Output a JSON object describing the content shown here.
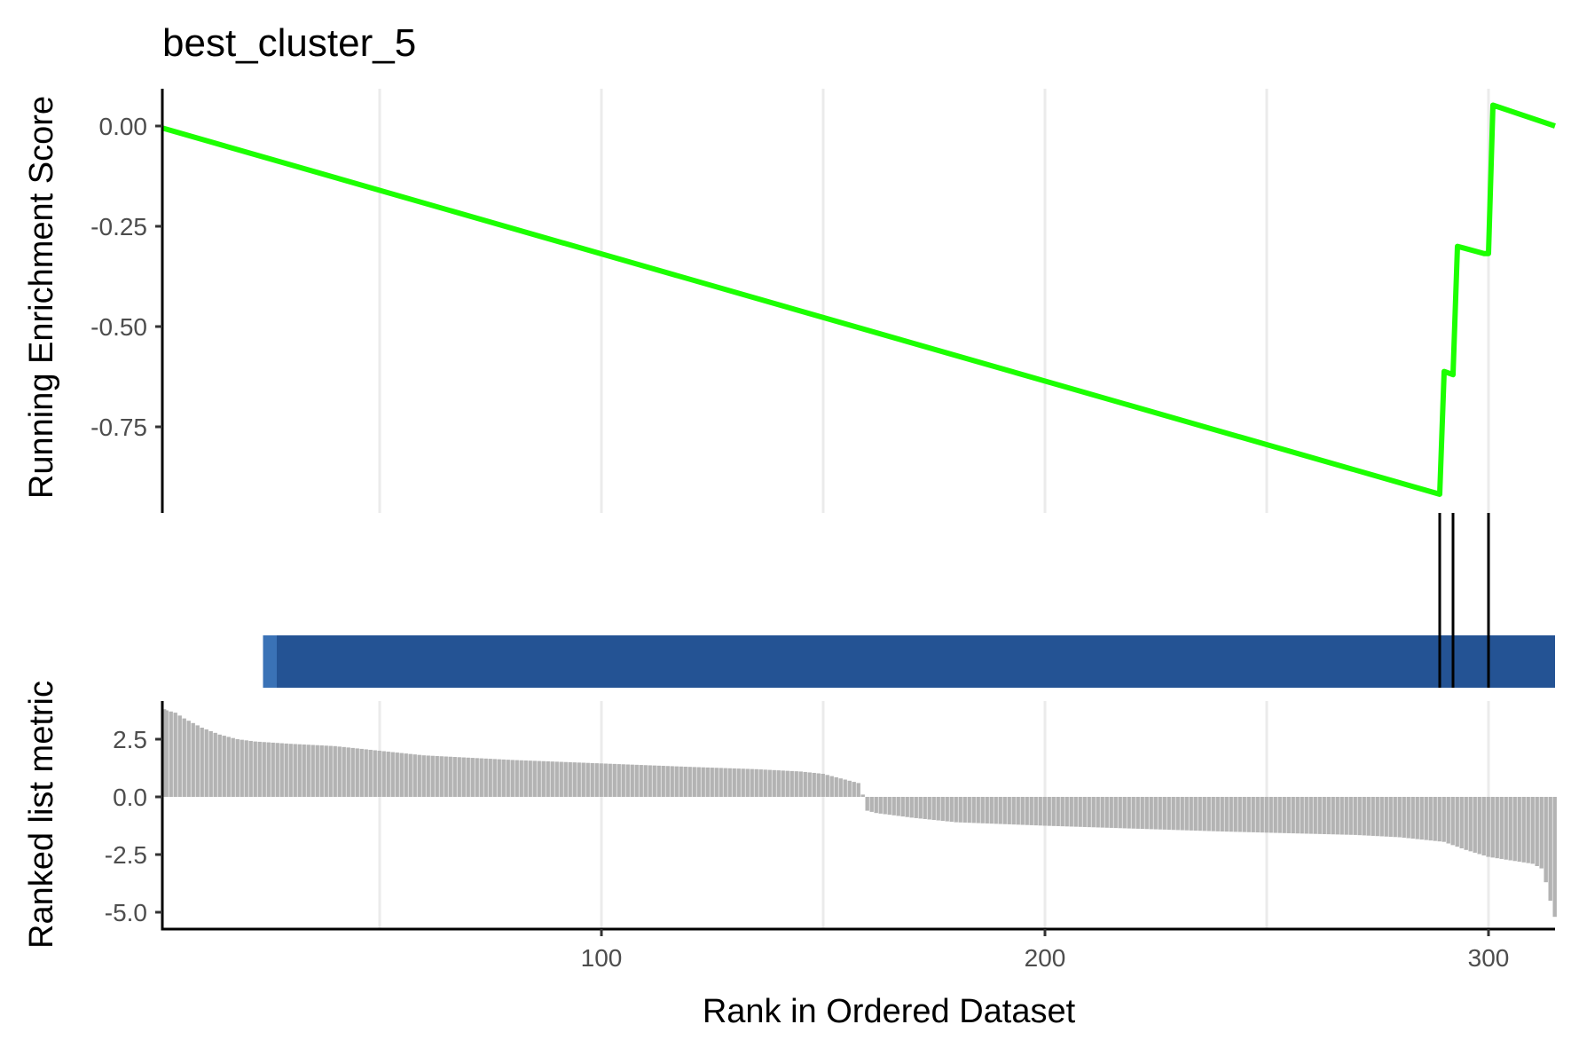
{
  "chart_data": {
    "type": "line",
    "title": "best_cluster_5",
    "xlabel": "Rank in Ordered Dataset",
    "x_range": [
      1,
      315
    ],
    "x_ticks": [
      100,
      200,
      300
    ],
    "x_tick_labels": [
      "100",
      "200",
      "300"
    ],
    "x_minor_grid": [
      50,
      150,
      250
    ],
    "panels": {
      "enrichment": {
        "ylabel": "Running Enrichment Score",
        "ylim": [
          -1.0,
          0.1
        ],
        "y_ticks": [
          0.0,
          -0.25,
          -0.5,
          -0.75
        ],
        "y_tick_labels": [
          "0.00",
          "-0.25",
          "-0.50",
          "-0.75"
        ],
        "line_color": "#1CFF00",
        "series": [
          {
            "name": "Running Enrichment Score",
            "x": [
              1,
              289,
              290,
              292,
              293,
              299,
              300,
              301,
              315
            ],
            "y": [
              -0.005,
              -0.918,
              -0.612,
              -0.62,
              -0.3,
              -0.318,
              -0.318,
              0.052,
              0.0
            ]
          }
        ]
      },
      "hits": {
        "positions": [
          290,
          293,
          301
        ],
        "color": "#000000"
      },
      "heatbar": {
        "x_start": 23.7,
        "x_end": 315,
        "light_segment_end": 26.8,
        "light_color": "#3A72B6",
        "main_color": "#245394"
      },
      "ranked_metric": {
        "ylabel": "Ranked list metric",
        "ylim": [
          -5.5,
          3.8
        ],
        "y_ticks": [
          2.5,
          0.0,
          -2.5,
          -5.0
        ],
        "y_tick_labels": [
          "2.5",
          "0.0",
          "-2.5",
          "-5.0"
        ],
        "bar_color": "#B3B3B3",
        "n": 315,
        "breakpoints": {
          "x": [
            1,
            2,
            3,
            4,
            6,
            8,
            10,
            12,
            14,
            16,
            18,
            22,
            30,
            40,
            60,
            80,
            100,
            120,
            135,
            140,
            145,
            150,
            152,
            154,
            156,
            158,
            159,
            160,
            162,
            166,
            170,
            180,
            200,
            240,
            260,
            270,
            280,
            290,
            295,
            300,
            305,
            310,
            312,
            313,
            314,
            315
          ],
          "y": [
            3.8,
            3.75,
            3.7,
            3.65,
            3.4,
            3.2,
            3.0,
            2.85,
            2.7,
            2.6,
            2.5,
            2.4,
            2.3,
            2.2,
            1.8,
            1.6,
            1.45,
            1.3,
            1.2,
            1.15,
            1.1,
            1.0,
            0.9,
            0.8,
            0.7,
            0.6,
            0.1,
            -0.6,
            -0.7,
            -0.8,
            -0.9,
            -1.1,
            -1.25,
            -1.5,
            -1.6,
            -1.65,
            -1.75,
            -1.95,
            -2.3,
            -2.6,
            -2.75,
            -2.9,
            -3.1,
            -3.7,
            -4.5,
            -5.2
          ]
        }
      }
    }
  }
}
